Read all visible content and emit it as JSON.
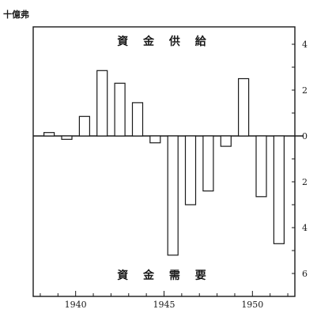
{
  "chart_data": {
    "type": "bar",
    "unit_label": "十億弗",
    "annotation_top": "資 金 供 給",
    "annotation_bottom": "資 金 需 要",
    "x": [
      1938,
      1939,
      1940,
      1941,
      1942,
      1943,
      1944,
      1945,
      1946,
      1947,
      1948,
      1949,
      1950,
      1951
    ],
    "values": [
      0.15,
      -0.15,
      0.85,
      2.85,
      2.3,
      1.45,
      -0.3,
      -5.2,
      -3.0,
      -2.4,
      -0.45,
      2.5,
      -2.65,
      -4.7
    ],
    "x_ticks": [
      1940,
      1945,
      1950
    ],
    "y_ticks": [
      -6,
      -4,
      -2,
      0,
      2,
      4
    ],
    "y_tick_labels": [
      "6",
      "4",
      "2",
      "0",
      "2",
      "4"
    ],
    "xlim": [
      1937.6,
      1952.4
    ],
    "ylim": [
      -7,
      4.7
    ],
    "grid": false
  }
}
